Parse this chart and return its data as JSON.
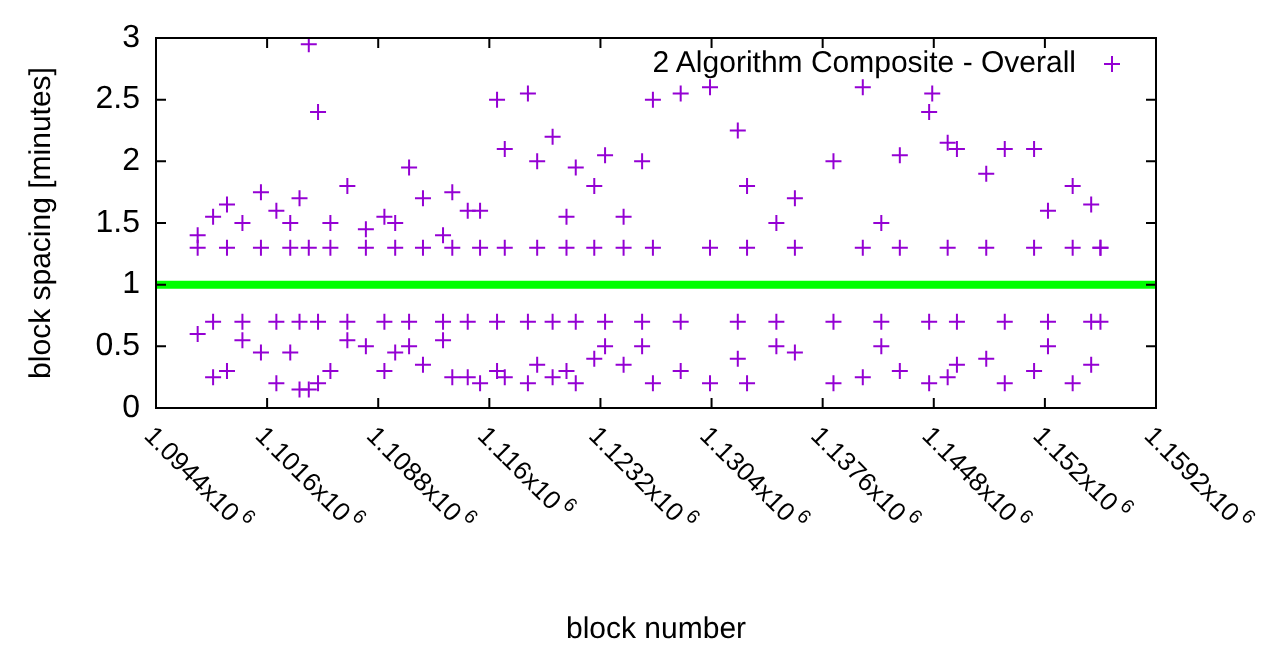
{
  "chart_data": {
    "type": "scatter",
    "xlabel": "block number",
    "ylabel": "block spacing [minutes]",
    "xlim": [
      1094400,
      1159200
    ],
    "ylim": [
      0,
      3
    ],
    "xticks": [
      {
        "value": 1094400,
        "label": "1.0944x10$^{6}$"
      },
      {
        "value": 1101600,
        "label": "1.1016x10$^{6}$"
      },
      {
        "value": 1108800,
        "label": "1.1088x10$^{6}$"
      },
      {
        "value": 1116000,
        "label": "1.116x10$^{6}$"
      },
      {
        "value": 1123200,
        "label": "1.1232x10$^{6}$"
      },
      {
        "value": 1130400,
        "label": "1.1304x10$^{6}$"
      },
      {
        "value": 1137600,
        "label": "1.1376x10$^{6}$"
      },
      {
        "value": 1144800,
        "label": "1.1448x10$^{6}$"
      },
      {
        "value": 1152000,
        "label": "1.152x10$^{6}$"
      },
      {
        "value": 1159200,
        "label": "1.1592x10$^{6}$"
      }
    ],
    "yticks": [
      0,
      0.5,
      1,
      1.5,
      2,
      2.5,
      3
    ],
    "grid": false,
    "legend": "top right",
    "marker": "cross",
    "ref_lines": [
      {
        "axis": "y",
        "value": 1,
        "color": "#00ff00"
      }
    ],
    "series": [
      {
        "name": "2 Algorithm Composite - Overall",
        "color": "#9400d3",
        "x": [
          1097100,
          1097100,
          1097100,
          1098100,
          1098100,
          1098100,
          1099000,
          1099000,
          1099000,
          1100000,
          1100000,
          1100000,
          1101200,
          1101200,
          1101200,
          1102200,
          1102200,
          1102200,
          1103100,
          1103100,
          1103100,
          1103700,
          1103700,
          1103700,
          1104300,
          1104300,
          1104300,
          1104900,
          1104900,
          1104900,
          1105700,
          1105700,
          1105700,
          1106800,
          1106800,
          1106800,
          1108000,
          1108000,
          1108000,
          1109200,
          1109200,
          1109200,
          1109900,
          1109900,
          1109900,
          1110800,
          1110800,
          1110800,
          1111700,
          1111700,
          1111700,
          1113000,
          1113000,
          1113000,
          1113600,
          1113600,
          1113600,
          1114600,
          1114600,
          1114600,
          1115400,
          1115400,
          1115400,
          1116500,
          1116500,
          1116500,
          1117000,
          1117000,
          1117000,
          1118500,
          1118500,
          1118500,
          1119100,
          1119100,
          1119100,
          1120100,
          1120100,
          1120100,
          1121000,
          1121000,
          1121000,
          1121600,
          1121600,
          1121600,
          1122800,
          1122800,
          1122800,
          1123500,
          1123500,
          1123500,
          1124700,
          1124700,
          1124700,
          1125900,
          1125900,
          1125900,
          1126600,
          1126600,
          1126600,
          1128400,
          1128400,
          1128400,
          1130300,
          1130300,
          1130300,
          1132100,
          1132100,
          1132100,
          1132700,
          1132700,
          1132700,
          1134600,
          1134600,
          1134600,
          1135800,
          1135800,
          1135800,
          1138300,
          1138300,
          1138300,
          1140200,
          1140200,
          1140200,
          1141400,
          1141400,
          1141400,
          1142600,
          1142600,
          1142600,
          1144500,
          1144500,
          1144500,
          1144700,
          1145700,
          1145700,
          1145700,
          1146300,
          1146300,
          1146300,
          1148200,
          1148200,
          1148200,
          1149400,
          1149400,
          1149400,
          1151300,
          1151300,
          1151300,
          1152200,
          1152200,
          1152200,
          1153800,
          1153800,
          1153800,
          1155000,
          1155000,
          1155000,
          1155600,
          1155600,
          1155600
        ],
        "values": [
          1.4,
          1.3,
          0.6,
          1.55,
          0.7,
          0.25,
          1.65,
          1.3,
          0.3,
          1.5,
          0.7,
          0.55,
          1.75,
          1.3,
          0.45,
          1.6,
          0.7,
          0.2,
          1.5,
          1.3,
          0.45,
          1.7,
          0.7,
          0.15,
          2.95,
          1.3,
          0.15,
          2.4,
          0.7,
          0.2,
          1.5,
          1.3,
          0.3,
          1.8,
          0.7,
          0.55,
          1.45,
          1.3,
          0.5,
          1.55,
          0.7,
          0.3,
          1.5,
          1.3,
          0.45,
          1.95,
          0.7,
          0.5,
          1.7,
          1.3,
          0.35,
          1.4,
          0.7,
          0.55,
          1.75,
          1.3,
          0.25,
          1.6,
          0.7,
          0.25,
          1.6,
          1.3,
          0.2,
          2.5,
          0.7,
          0.3,
          2.1,
          1.3,
          0.25,
          2.55,
          0.7,
          0.2,
          2.0,
          1.3,
          0.35,
          2.2,
          0.7,
          0.25,
          1.55,
          1.3,
          0.3,
          1.95,
          0.7,
          0.2,
          1.8,
          1.3,
          0.4,
          2.05,
          0.7,
          0.5,
          1.55,
          1.3,
          0.35,
          2.0,
          0.7,
          0.5,
          2.5,
          1.3,
          0.2,
          2.55,
          0.7,
          0.3,
          2.6,
          1.3,
          0.2,
          2.25,
          0.7,
          0.4,
          1.8,
          1.3,
          0.2,
          1.5,
          0.7,
          0.5,
          1.7,
          1.3,
          0.45,
          2.0,
          0.7,
          0.2,
          2.6,
          1.3,
          0.25,
          1.5,
          0.7,
          0.5,
          2.05,
          1.3,
          0.3,
          2.4,
          0.7,
          0.2,
          2.55,
          2.15,
          1.3,
          0.25,
          2.1,
          0.7,
          0.35,
          1.9,
          1.3,
          0.4,
          2.1,
          0.7,
          0.2,
          2.1,
          1.3,
          0.3,
          1.6,
          0.7,
          0.5,
          1.8,
          1.3,
          0.2,
          1.65,
          0.7,
          0.35,
          1.3,
          1.3,
          0.7
        ]
      }
    ]
  }
}
